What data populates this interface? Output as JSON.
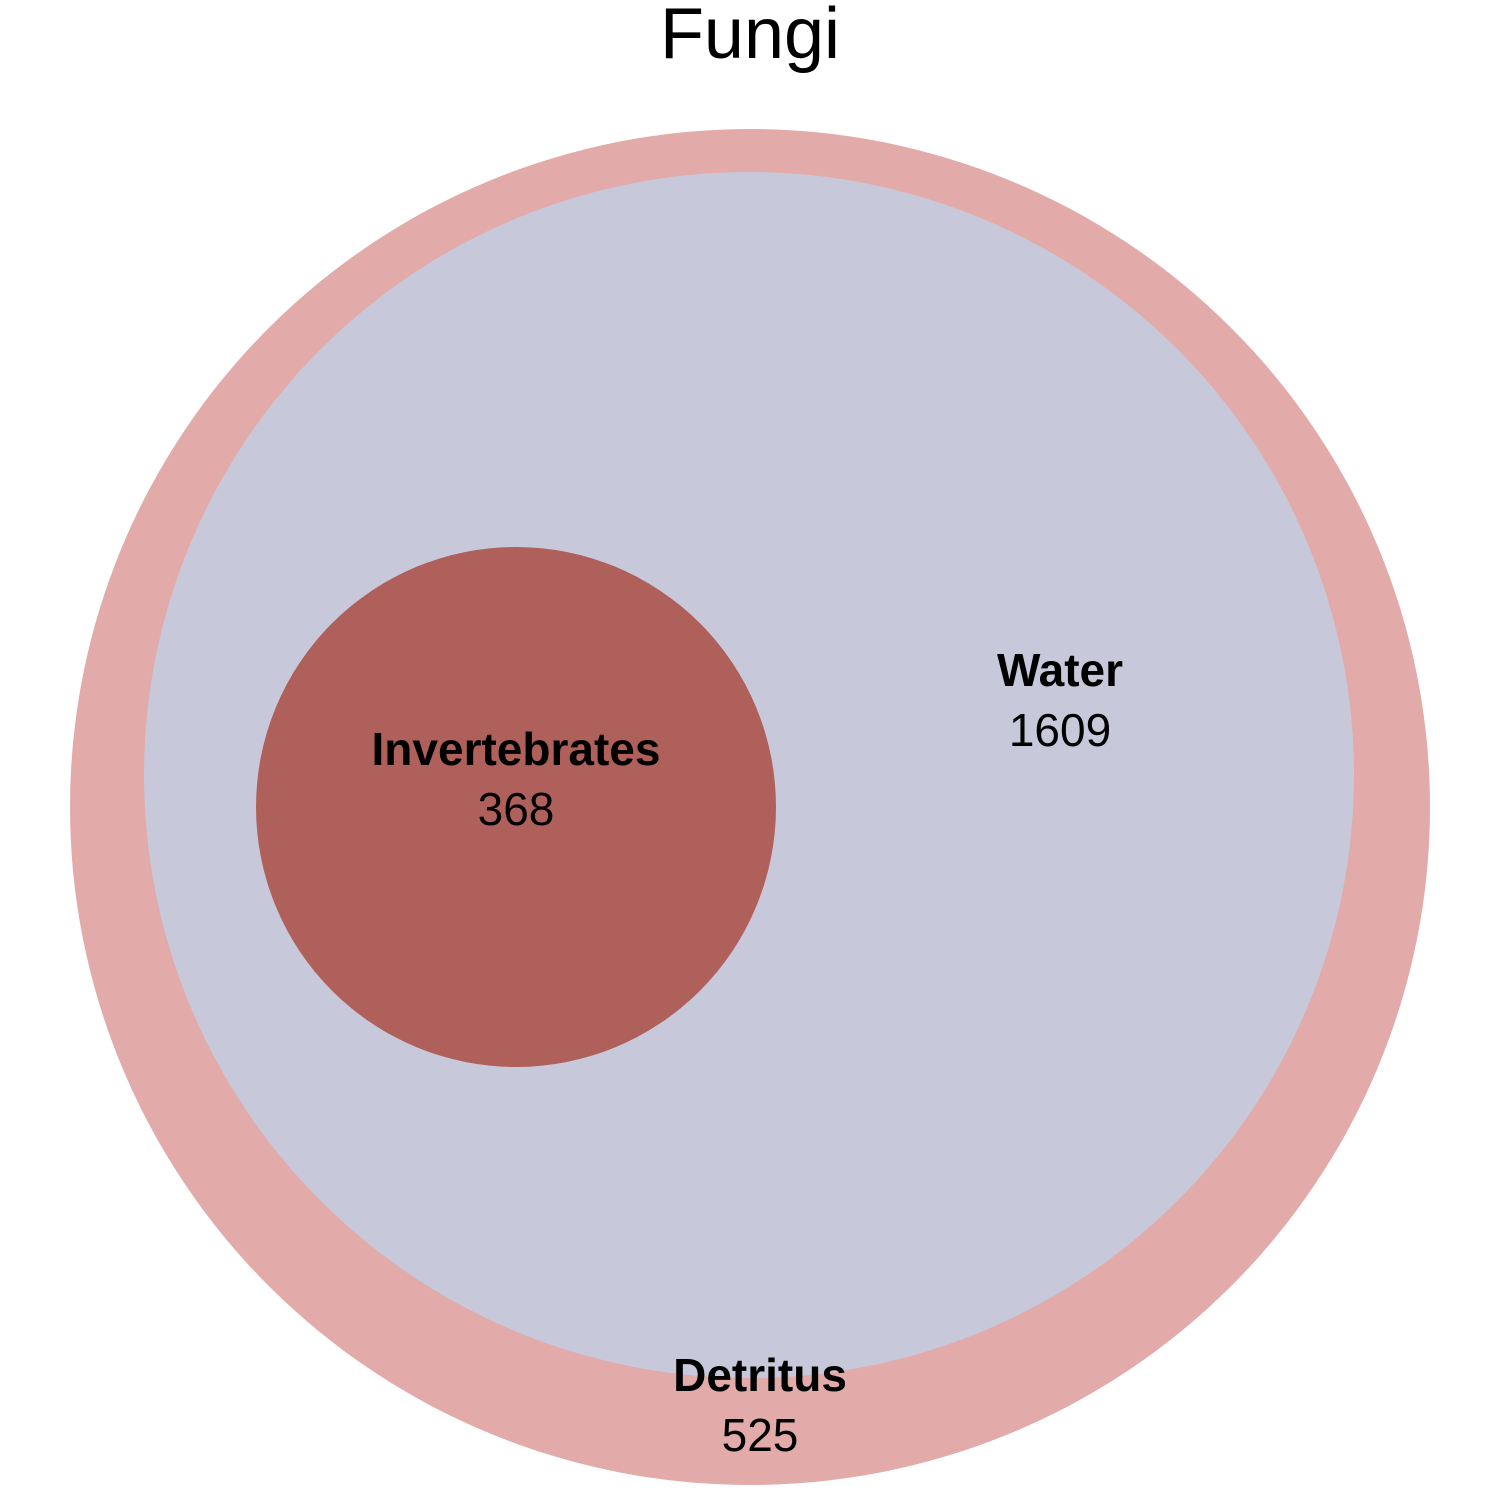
{
  "title": "Fungi",
  "sets": [
    {
      "id": "detritus",
      "name": "Detritus",
      "count": "525",
      "color": "#e2aaa8"
    },
    {
      "id": "water",
      "name": "Water",
      "count": "1609",
      "color": "#c8c8db"
    },
    {
      "id": "invertebrates",
      "name": "Invertebrates",
      "count": "368",
      "color": "#b0605b"
    }
  ]
}
